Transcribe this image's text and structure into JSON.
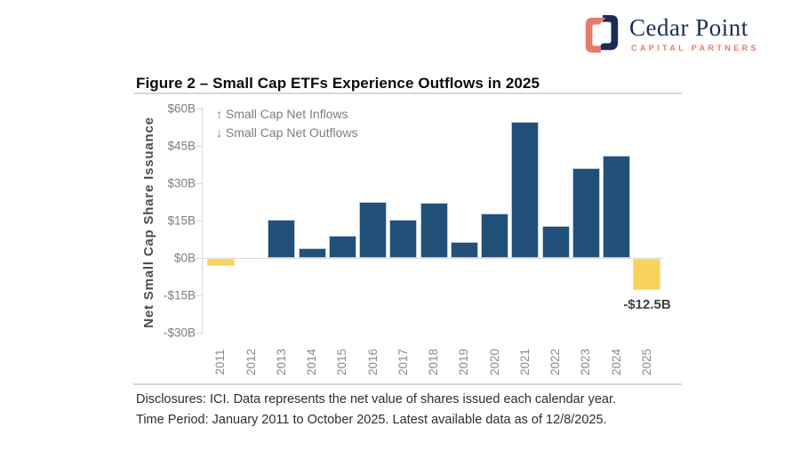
{
  "logo": {
    "name": "Cedar Point",
    "subtitle": "CAPITAL PARTNERS",
    "colors": {
      "navy": "#1d2b55",
      "coral": "#e8796d"
    }
  },
  "figure": {
    "title": "Figure 2 – Small Cap ETFs Experience Outflows in 2025",
    "disclosure_line1": "Disclosures: ICI. Data represents the net value of shares issued each calendar year.",
    "disclosure_line2": "Time Period: January 2011 to October 2025. Latest available data as of 12/8/2025."
  },
  "chart_data": {
    "type": "bar",
    "title": "Figure 2 – Small Cap ETFs Experience Outflows in 2025",
    "ylabel": "Net Small Cap Share Issuance",
    "xlabel": "",
    "unit": "USD billions",
    "categories": [
      "2011",
      "2012",
      "2013",
      "2014",
      "2015",
      "2016",
      "2017",
      "2018",
      "2019",
      "2020",
      "2021",
      "2022",
      "2023",
      "2024",
      "2025"
    ],
    "values": [
      -3,
      0,
      15.5,
      4,
      9,
      22.5,
      15.5,
      22,
      6.5,
      18,
      54.5,
      13,
      36,
      41,
      -12.5
    ],
    "ylim": [
      -30,
      60
    ],
    "yticks": {
      "values": [
        60,
        45,
        30,
        15,
        0,
        -15,
        -30
      ],
      "labels": [
        "$60B",
        "$45B",
        "$30B",
        "$15B",
        "$0B",
        "-$15B",
        "-$30B"
      ]
    },
    "legend": [
      "↑ Small Cap Net Inflows",
      "↓ Small Cap Net Outflows"
    ],
    "legend_position": "top-left",
    "grid": false,
    "annotation": {
      "category": "2025",
      "text": "-$12.5B"
    },
    "colors": {
      "positive": "#215079",
      "negative": "#f8d45f"
    }
  }
}
